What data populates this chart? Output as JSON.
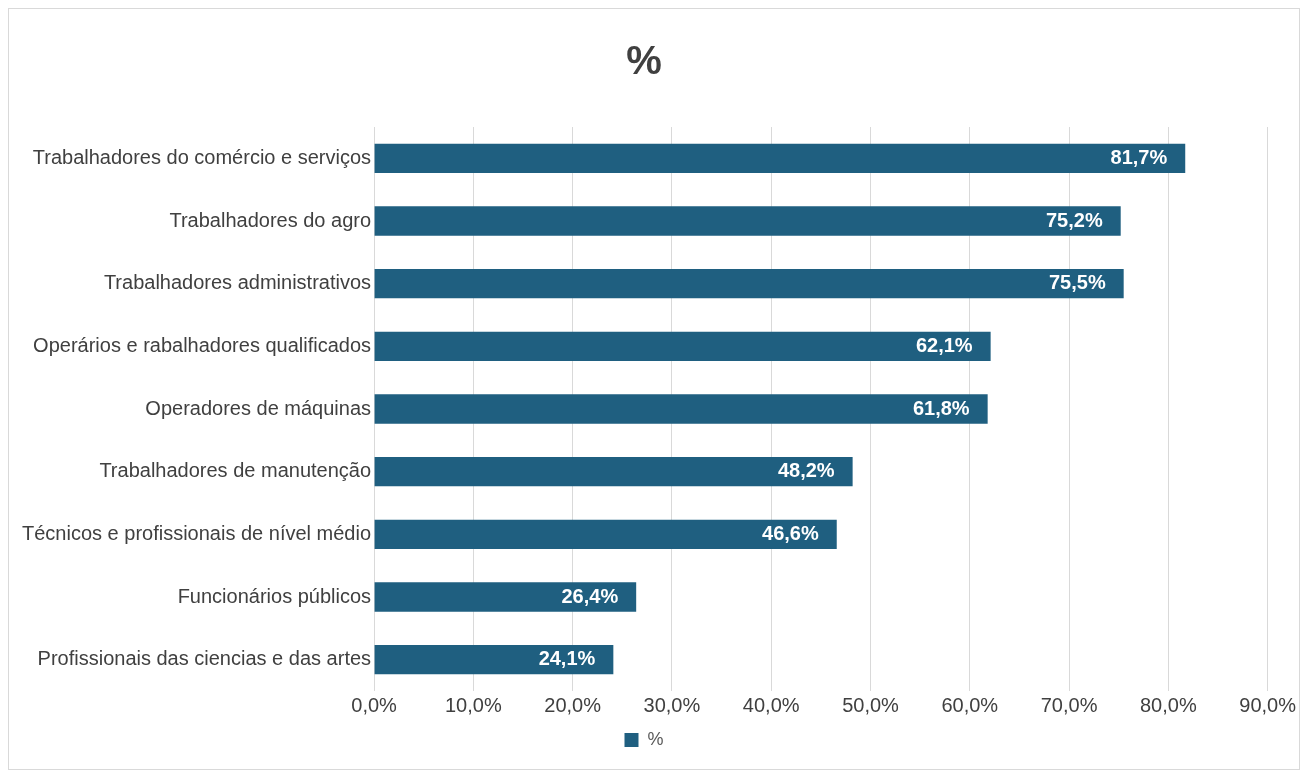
{
  "chart_data": {
    "type": "bar",
    "orientation": "horizontal",
    "title": "%",
    "categories": [
      "Trabalhadores do comércio e serviços",
      "Trabalhadores do agro",
      "Trabalhadores administrativos",
      "Operários e rabalhadores qualificados",
      "Operadores de máquinas",
      "Trabalhadores de manutenção",
      "Técnicos e profissionais de nível médio",
      "Funcionários públicos",
      "Profissionais das ciencias e das artes"
    ],
    "series": [
      {
        "name": "%",
        "color": "#1f5f80",
        "values": [
          81.7,
          75.2,
          75.5,
          62.1,
          61.8,
          48.2,
          46.6,
          26.4,
          24.1
        ],
        "value_labels": [
          "81,7%",
          "75,2%",
          "75,5%",
          "62,1%",
          "61,8%",
          "48,2%",
          "46,6%",
          "26,4%",
          "24,1%"
        ]
      }
    ],
    "xlim": [
      0,
      90
    ],
    "xticks": [
      {
        "value": 0,
        "label": "0,0%"
      },
      {
        "value": 10,
        "label": "10,0%"
      },
      {
        "value": 20,
        "label": "20,0%"
      },
      {
        "value": 30,
        "label": "30,0%"
      },
      {
        "value": 40,
        "label": "40,0%"
      },
      {
        "value": 50,
        "label": "50,0%"
      },
      {
        "value": 60,
        "label": "60,0%"
      },
      {
        "value": 70,
        "label": "70,0%"
      },
      {
        "value": 80,
        "label": "80,0%"
      },
      {
        "value": 90,
        "label": "90,0%"
      }
    ],
    "grid": "x",
    "legend": "bottom"
  }
}
